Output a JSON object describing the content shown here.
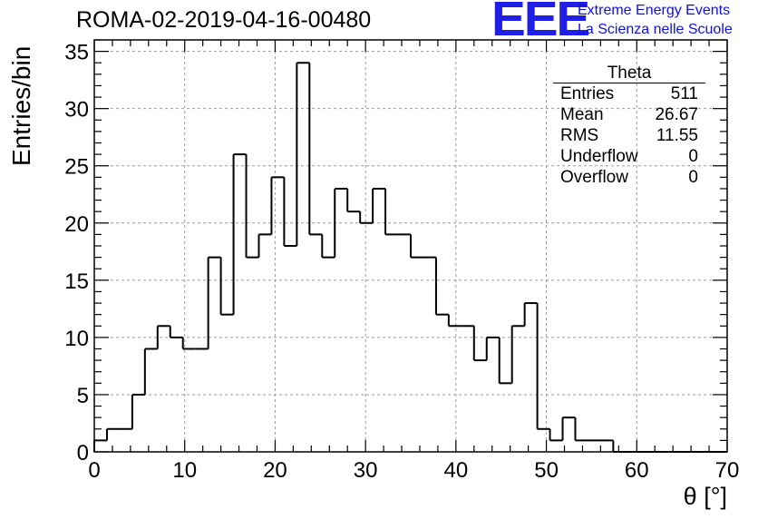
{
  "header": {
    "title": "ROMA-02-2019-04-16-00480",
    "logo_text": "EEE",
    "logo_line1": "Extreme Energy Events",
    "logo_line2": "La Scienza nelle Scuole"
  },
  "stats": {
    "title": "Theta",
    "rows": [
      {
        "label": "Entries",
        "value": "511"
      },
      {
        "label": "Mean",
        "value": "26.67"
      },
      {
        "label": "RMS",
        "value": "11.55"
      },
      {
        "label": "Underflow",
        "value": "0"
      },
      {
        "label": "Overflow",
        "value": "0"
      }
    ]
  },
  "chart_data": {
    "type": "bar",
    "title": "ROMA-02-2019-04-16-00480",
    "xlabel": "θ [°]",
    "ylabel": "Entries/bin",
    "xlim": [
      0,
      70
    ],
    "ylim": [
      0,
      36
    ],
    "x_ticks": [
      0,
      10,
      20,
      30,
      40,
      50,
      60,
      70
    ],
    "y_ticks": [
      0,
      5,
      10,
      15,
      20,
      25,
      30,
      35
    ],
    "grid": true,
    "bin_width": 1.4,
    "bin_edges_start": 0,
    "values": [
      1,
      2,
      2,
      5,
      9,
      11,
      10,
      9,
      9,
      17,
      12,
      26,
      17,
      19,
      24,
      18,
      34,
      19,
      17,
      23,
      21,
      20,
      23,
      19,
      19,
      17,
      17,
      12,
      11,
      11,
      8,
      10,
      6,
      11,
      13,
      2,
      1,
      3,
      1,
      1,
      1,
      0,
      0,
      0,
      0,
      0,
      0,
      0,
      0,
      0
    ],
    "colors": {
      "line": "#000000",
      "grid": "#9a9a9a",
      "background": "#ffffff"
    }
  }
}
